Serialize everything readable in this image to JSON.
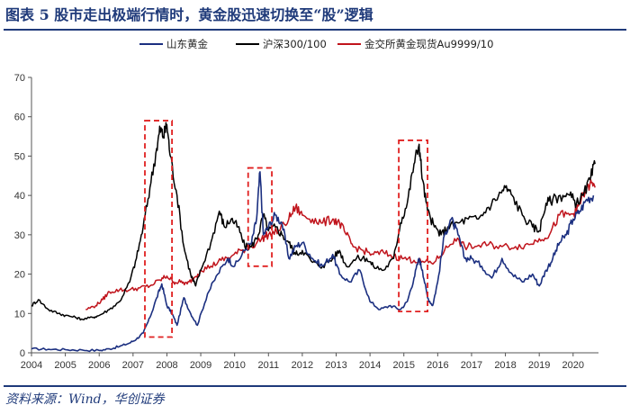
{
  "title": "图表 5   股市走出极端行情时，黄金股迅速切换至“股”逻辑",
  "source": "资料来源：Wind，华创证券",
  "chart_data": {
    "type": "line",
    "xlim": [
      2004,
      2020.75
    ],
    "ylim": [
      0,
      70
    ],
    "yticks": [
      0,
      10,
      20,
      30,
      40,
      50,
      60,
      70
    ],
    "xticks": [
      2004,
      2005,
      2006,
      2007,
      2008,
      2009,
      2010,
      2011,
      2012,
      2013,
      2014,
      2015,
      2016,
      2017,
      2018,
      2019,
      2020
    ],
    "xtick_labels": [
      "2004",
      "2005",
      "2006",
      "2007",
      "2008",
      "2009",
      "2010",
      "2011",
      "2012",
      "2013",
      "2014",
      "2015",
      "2016",
      "2017",
      "2018",
      "2019",
      "2020"
    ],
    "legend_position": "top-center",
    "grid": false,
    "series": [
      {
        "name": "山东黄金",
        "color": "#1b2f80",
        "x": [
          2004.0,
          2004.5,
          2005.0,
          2005.5,
          2006.0,
          2006.3,
          2006.6,
          2006.9,
          2007.1,
          2007.3,
          2007.5,
          2007.7,
          2007.85,
          2008.0,
          2008.15,
          2008.3,
          2008.5,
          2008.7,
          2008.9,
          2009.2,
          2009.5,
          2009.8,
          2010.0,
          2010.3,
          2010.5,
          2010.65,
          2010.75,
          2010.85,
          2011.0,
          2011.2,
          2011.4,
          2011.6,
          2011.8,
          2012.0,
          2012.3,
          2012.6,
          2012.9,
          2013.1,
          2013.4,
          2013.7,
          2014.0,
          2014.3,
          2014.6,
          2014.9,
          2015.1,
          2015.3,
          2015.45,
          2015.55,
          2015.7,
          2015.85,
          2016.0,
          2016.2,
          2016.4,
          2016.6,
          2016.8,
          2017.0,
          2017.3,
          2017.6,
          2017.9,
          2018.2,
          2018.5,
          2018.8,
          2019.0,
          2019.2,
          2019.4,
          2019.6,
          2019.8,
          2020.0,
          2020.2,
          2020.4,
          2020.6
        ],
        "values": [
          1.0,
          0.9,
          0.8,
          0.7,
          0.6,
          1.0,
          1.6,
          2.5,
          3.5,
          5.0,
          9.0,
          14.0,
          17.5,
          12.0,
          10.0,
          7.0,
          14.0,
          10.0,
          7.0,
          15.0,
          20.0,
          24.0,
          22.0,
          26.0,
          28.0,
          34.0,
          46.0,
          30.0,
          32.0,
          35.0,
          33.0,
          24.0,
          27.0,
          28.0,
          24.0,
          22.0,
          25.0,
          20.0,
          18.0,
          21.0,
          13.0,
          11.0,
          12.0,
          11.0,
          13.0,
          19.0,
          24.0,
          21.0,
          14.0,
          12.0,
          18.0,
          30.0,
          34.0,
          30.0,
          24.0,
          24.0,
          22.0,
          19.0,
          24.0,
          20.0,
          18.0,
          20.0,
          17.0,
          21.0,
          24.0,
          28.0,
          30.0,
          34.0,
          36.0,
          39.0,
          40.0
        ]
      },
      {
        "name": "沪深300/100",
        "color": "#000000",
        "x": [
          2004.0,
          2004.2,
          2004.5,
          2004.8,
          2005.0,
          2005.3,
          2005.5,
          2005.8,
          2006.0,
          2006.3,
          2006.6,
          2006.9,
          2007.1,
          2007.3,
          2007.5,
          2007.7,
          2007.8,
          2007.9,
          2008.0,
          2008.1,
          2008.3,
          2008.5,
          2008.7,
          2008.85,
          2009.0,
          2009.3,
          2009.55,
          2009.7,
          2009.9,
          2010.1,
          2010.3,
          2010.5,
          2010.7,
          2010.85,
          2011.0,
          2011.2,
          2011.4,
          2011.6,
          2011.8,
          2012.0,
          2012.3,
          2012.6,
          2012.9,
          2013.1,
          2013.3,
          2013.6,
          2013.9,
          2014.1,
          2014.4,
          2014.7,
          2014.9,
          2015.1,
          2015.3,
          2015.45,
          2015.55,
          2015.7,
          2015.9,
          2016.1,
          2016.3,
          2016.6,
          2016.9,
          2017.2,
          2017.5,
          2017.8,
          2018.0,
          2018.2,
          2018.5,
          2018.8,
          2019.0,
          2019.2,
          2019.4,
          2019.7,
          2019.9,
          2020.1,
          2020.3,
          2020.5,
          2020.65
        ],
        "values": [
          12.0,
          13.5,
          11.0,
          10.0,
          9.5,
          9.0,
          8.5,
          9.0,
          9.5,
          11.0,
          13.0,
          18.0,
          24.0,
          32.0,
          42.0,
          52.0,
          57.0,
          55.0,
          58.0,
          50.0,
          40.0,
          27.0,
          20.0,
          17.0,
          21.0,
          28.0,
          36.0,
          32.0,
          34.0,
          32.0,
          27.0,
          27.0,
          30.0,
          35.0,
          31.0,
          32.0,
          30.0,
          28.0,
          25.0,
          26.0,
          23.0,
          22.0,
          24.0,
          26.0,
          22.0,
          24.0,
          24.0,
          22.0,
          21.0,
          24.0,
          33.0,
          38.0,
          48.0,
          53.0,
          44.0,
          36.0,
          32.0,
          30.0,
          32.0,
          33.0,
          34.0,
          34.0,
          37.0,
          40.0,
          42.0,
          40.0,
          35.0,
          32.0,
          31.0,
          38.0,
          39.0,
          40.0,
          40.0,
          38.0,
          40.0,
          44.0,
          48.0
        ]
      },
      {
        "name": "金交所黄金现货Au9999/10",
        "color": "#c0141c",
        "x": [
          2005.6,
          2005.9,
          2006.1,
          2006.3,
          2006.6,
          2006.9,
          2007.2,
          2007.5,
          2007.8,
          2008.0,
          2008.2,
          2008.4,
          2008.6,
          2008.8,
          2009.0,
          2009.3,
          2009.6,
          2009.9,
          2010.2,
          2010.5,
          2010.8,
          2011.0,
          2011.3,
          2011.6,
          2011.8,
          2012.0,
          2012.3,
          2012.6,
          2012.9,
          2013.1,
          2013.3,
          2013.5,
          2013.8,
          2014.1,
          2014.4,
          2014.7,
          2015.0,
          2015.3,
          2015.6,
          2015.9,
          2016.2,
          2016.5,
          2016.8,
          2017.1,
          2017.5,
          2017.9,
          2018.3,
          2018.7,
          2019.0,
          2019.3,
          2019.6,
          2019.9,
          2020.1,
          2020.3,
          2020.5,
          2020.65
        ],
        "values": [
          11.0,
          12.0,
          13.5,
          15.5,
          16.0,
          16.0,
          16.5,
          17.0,
          18.5,
          19.5,
          18.0,
          18.0,
          17.5,
          19.0,
          21.0,
          22.0,
          23.5,
          24.5,
          26.0,
          27.0,
          29.0,
          30.0,
          31.0,
          34.0,
          37.0,
          35.0,
          34.0,
          33.0,
          34.0,
          33.0,
          30.0,
          27.0,
          26.0,
          25.0,
          25.5,
          24.5,
          24.0,
          23.5,
          23.0,
          23.0,
          26.0,
          29.0,
          27.0,
          27.0,
          27.5,
          27.0,
          27.0,
          27.5,
          29.0,
          30.0,
          35.0,
          35.0,
          36.0,
          40.0,
          43.0,
          42.0
        ]
      }
    ],
    "annotations": [
      {
        "type": "dashed-box",
        "x0": 2007.35,
        "x1": 2008.15,
        "y0": 4,
        "y1": 59
      },
      {
        "type": "dashed-box",
        "x0": 2010.4,
        "x1": 2011.1,
        "y0": 22,
        "y1": 47
      },
      {
        "type": "dashed-box",
        "x0": 2014.85,
        "x1": 2015.7,
        "y0": 10.5,
        "y1": 54
      }
    ]
  },
  "colors": {
    "frame": "#1f3a7a",
    "annotation": "#e02020"
  }
}
